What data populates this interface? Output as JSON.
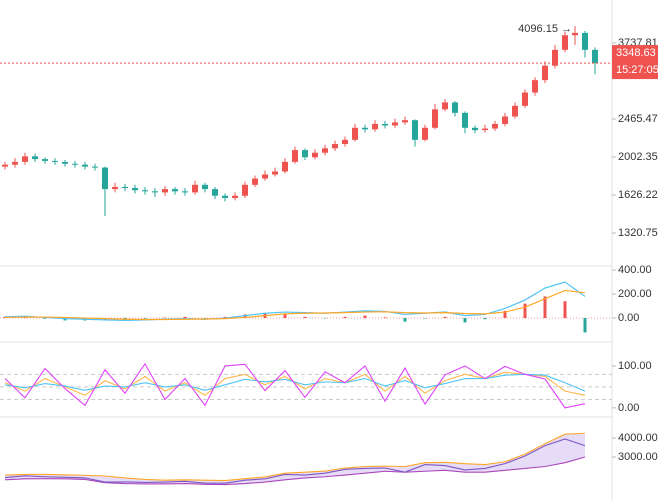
{
  "chart_data": [
    {
      "type": "candlestick",
      "log_scale": true,
      "ylim": [
        1109,
        4729
      ],
      "yticks": [
        3737.81,
        2465.47,
        2002.35,
        1626.22,
        1320.75
      ],
      "up_color": "#ef5350",
      "down_color": "#26a69a",
      "countdown": "15:27:05",
      "annotation": "4096.15 →",
      "open": [
        1900,
        1920,
        1950,
        2010,
        1980,
        1960,
        1950,
        1930,
        1920,
        1900,
        1890,
        1680,
        1700,
        1690,
        1670,
        1660,
        1650,
        1680,
        1660,
        1650,
        1720,
        1680,
        1620,
        1600,
        1620,
        1720,
        1780,
        1820,
        1850,
        1950,
        2080,
        2000,
        2050,
        2100,
        2150,
        2200,
        2350,
        2330,
        2400,
        2380,
        2420,
        2450,
        2200,
        2350,
        2600,
        2700,
        2550,
        2350,
        2320,
        2340,
        2400,
        2500,
        2650,
        2850,
        3050,
        3300,
        3600,
        3900,
        3950,
        3600
      ],
      "high": [
        1950,
        1990,
        2050,
        2040,
        2000,
        1990,
        1970,
        1960,
        1950,
        1930,
        1900,
        1740,
        1730,
        1720,
        1700,
        1690,
        1710,
        1700,
        1690,
        1760,
        1740,
        1700,
        1640,
        1650,
        1750,
        1810,
        1860,
        1890,
        1990,
        2120,
        2100,
        2090,
        2140,
        2190,
        2240,
        2400,
        2390,
        2450,
        2440,
        2470,
        2500,
        2460,
        2390,
        2680,
        2750,
        2720,
        2570,
        2380,
        2390,
        2440,
        2550,
        2700,
        2900,
        3100,
        3380,
        3700,
        3980,
        4096.15,
        3990,
        3650
      ],
      "low": [
        1870,
        1890,
        1920,
        1950,
        1930,
        1920,
        1900,
        1890,
        1870,
        1860,
        1450,
        1650,
        1660,
        1640,
        1630,
        1610,
        1620,
        1630,
        1620,
        1630,
        1650,
        1590,
        1570,
        1580,
        1600,
        1700,
        1760,
        1800,
        1830,
        1930,
        1970,
        1980,
        2020,
        2070,
        2120,
        2180,
        2290,
        2300,
        2340,
        2350,
        2390,
        2120,
        2180,
        2330,
        2570,
        2500,
        2280,
        2280,
        2290,
        2310,
        2370,
        2470,
        2620,
        2800,
        3000,
        3250,
        3550,
        3700,
        3450,
        3150
      ],
      "close": [
        1920,
        1950,
        2010,
        1980,
        1960,
        1950,
        1930,
        1920,
        1900,
        1890,
        1680,
        1700,
        1690,
        1670,
        1660,
        1650,
        1680,
        1660,
        1650,
        1720,
        1680,
        1620,
        1600,
        1620,
        1720,
        1780,
        1820,
        1850,
        1950,
        2080,
        2000,
        2050,
        2100,
        2150,
        2200,
        2350,
        2330,
        2400,
        2380,
        2420,
        2450,
        2200,
        2350,
        2600,
        2700,
        2550,
        2350,
        2320,
        2340,
        2400,
        2500,
        2650,
        2850,
        3050,
        3300,
        3600,
        3900,
        3950,
        3600,
        3348.63
      ]
    },
    {
      "type": "macd",
      "ylim": [
        -183,
        417
      ],
      "yticks": [
        {
          "value": 400,
          "label": "400.00"
        },
        {
          "value": 200,
          "label": "200.00"
        },
        {
          "value": 0,
          "label": "0.00"
        }
      ],
      "series": [
        {
          "color": "#4fc3f7",
          "values": [
            10,
            15,
            5,
            -5,
            -10,
            -15,
            -20,
            -15,
            -10,
            -5,
            -10,
            0,
            20,
            40,
            50,
            45,
            40,
            50,
            60,
            55,
            30,
            40,
            50,
            20,
            30,
            80,
            150,
            250,
            300,
            180
          ]
        },
        {
          "color": "#ffa726",
          "values": [
            5,
            8,
            8,
            5,
            0,
            -5,
            -10,
            -12,
            -12,
            -10,
            -8,
            -5,
            5,
            20,
            35,
            40,
            42,
            45,
            50,
            52,
            45,
            42,
            45,
            38,
            35,
            50,
            90,
            160,
            230,
            210
          ]
        }
      ],
      "histogram": [
        10,
        14,
        -6,
        -20,
        -20,
        -20,
        -20,
        -6,
        4,
        10,
        -4,
        10,
        30,
        40,
        30,
        10,
        -4,
        10,
        20,
        6,
        -30,
        -4,
        10,
        -36,
        -10,
        60,
        120,
        180,
        140,
        -120
      ]
    },
    {
      "type": "kdj",
      "ylim": [
        -17,
        150
      ],
      "yticks": [
        {
          "value": 100,
          "label": "100.00"
        },
        {
          "value": 0,
          "label": "0.00"
        }
      ],
      "levels": [
        80,
        50,
        20
      ],
      "series": [
        {
          "color": "#ffb74d",
          "values": [
            60,
            40,
            70,
            50,
            30,
            65,
            45,
            75,
            40,
            60,
            30,
            70,
            80,
            55,
            75,
            45,
            70,
            60,
            80,
            40,
            75,
            35,
            65,
            80,
            70,
            85,
            80,
            75,
            40,
            30
          ]
        },
        {
          "color": "#4fc3f7",
          "values": [
            55,
            48,
            58,
            52,
            42,
            52,
            50,
            60,
            50,
            55,
            42,
            55,
            68,
            62,
            68,
            55,
            62,
            60,
            70,
            52,
            65,
            48,
            58,
            70,
            70,
            78,
            80,
            78,
            60,
            40
          ]
        },
        {
          "color": "#e040fb",
          "values": [
            70,
            24,
            94,
            46,
            6,
            91,
            35,
            105,
            20,
            70,
            6,
            100,
            104,
            41,
            89,
            25,
            86,
            60,
            100,
            16,
            95,
            9,
            79,
            100,
            70,
            99,
            80,
            69,
            0,
            10
          ]
        }
      ]
    },
    {
      "type": "band",
      "ylim": [
        1000,
        4947
      ],
      "yticks": [
        {
          "value": 4000,
          "label": "4000.00"
        },
        {
          "value": 3000,
          "label": "3000.00"
        }
      ],
      "fill": "#e6dcf7",
      "series": [
        {
          "color": "#ffa726",
          "values": [
            2050,
            2080,
            2080,
            2060,
            2040,
            2000,
            1900,
            1820,
            1780,
            1800,
            1780,
            1760,
            1860,
            1950,
            2150,
            2200,
            2260,
            2420,
            2500,
            2520,
            2500,
            2700,
            2720,
            2650,
            2600,
            2750,
            3150,
            3700,
            4200,
            4250
          ]
        },
        {
          "color": "#ab47bc",
          "values": [
            1800,
            1850,
            1860,
            1850,
            1820,
            1650,
            1600,
            1580,
            1580,
            1600,
            1560,
            1550,
            1600,
            1680,
            1800,
            1900,
            1960,
            2050,
            2150,
            2250,
            2200,
            2250,
            2300,
            2200,
            2200,
            2300,
            2400,
            2500,
            2700,
            3000
          ]
        },
        {
          "color": "#7e57c2",
          "values": [
            1920,
            2010,
            1960,
            1930,
            1900,
            1680,
            1690,
            1660,
            1680,
            1720,
            1620,
            1620,
            1780,
            1850,
            2080,
            2050,
            2150,
            2350,
            2400,
            2420,
            2200,
            2600,
            2550,
            2320,
            2400,
            2650,
            3050,
            3600,
            3950,
            3600
          ]
        }
      ]
    }
  ]
}
